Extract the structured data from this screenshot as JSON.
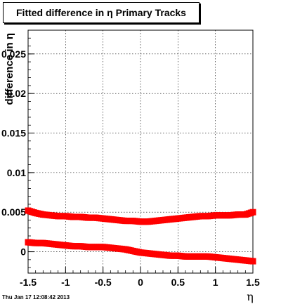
{
  "chart_data": {
    "type": "scatter",
    "title": "Fitted difference in η  Primary Tracks",
    "xlabel": "η",
    "ylabel": "difference in η",
    "xlim": [
      -1.5,
      1.5
    ],
    "ylim": [
      -0.0027,
      0.028
    ],
    "x_ticks": [
      -1.5,
      -1,
      -0.5,
      0,
      0.5,
      1,
      1.5
    ],
    "x_tick_labels": [
      "-1.5",
      "-1",
      "-0.5",
      "0",
      "0.5",
      "1",
      "1.5"
    ],
    "y_ticks": [
      0,
      0.005,
      0.01,
      0.015,
      0.02,
      0.025
    ],
    "y_tick_labels": [
      "0",
      "0.005",
      "0.01",
      "0.015",
      "0.02",
      "0.025"
    ],
    "grid": true,
    "marker_color": "#ff0000",
    "series": [
      {
        "points": [
          [
            -1.5,
            0.0052
          ],
          [
            -1.4,
            0.0049
          ],
          [
            -1.3,
            0.0047
          ],
          [
            -1.2,
            0.0046
          ],
          [
            -1.1,
            0.0045
          ],
          [
            -1.0,
            0.0045
          ],
          [
            -0.9,
            0.0044
          ],
          [
            -0.8,
            0.0044
          ],
          [
            -0.7,
            0.0043
          ],
          [
            -0.6,
            0.0043
          ],
          [
            -0.5,
            0.0042
          ],
          [
            -0.4,
            0.0041
          ],
          [
            -0.3,
            0.004
          ],
          [
            -0.2,
            0.0039
          ],
          [
            -0.1,
            0.0039
          ],
          [
            0.0,
            0.0038
          ],
          [
            0.1,
            0.0038
          ],
          [
            0.2,
            0.0039
          ],
          [
            0.3,
            0.004
          ],
          [
            0.4,
            0.0041
          ],
          [
            0.5,
            0.0042
          ],
          [
            0.6,
            0.0043
          ],
          [
            0.7,
            0.0044
          ],
          [
            0.8,
            0.0045
          ],
          [
            0.9,
            0.0045
          ],
          [
            1.0,
            0.0046
          ],
          [
            1.1,
            0.0046
          ],
          [
            1.2,
            0.0046
          ],
          [
            1.3,
            0.0047
          ],
          [
            1.4,
            0.0047
          ],
          [
            1.5,
            0.005
          ]
        ]
      },
      {
        "points": [
          [
            -1.5,
            0.0012
          ],
          [
            -1.4,
            0.0011
          ],
          [
            -1.3,
            0.0011
          ],
          [
            -1.2,
            0.001
          ],
          [
            -1.1,
            0.0009
          ],
          [
            -1.0,
            0.0008
          ],
          [
            -0.9,
            0.0007
          ],
          [
            -0.8,
            0.0007
          ],
          [
            -0.7,
            0.0006
          ],
          [
            -0.6,
            0.0006
          ],
          [
            -0.5,
            0.0006
          ],
          [
            -0.4,
            0.0005
          ],
          [
            -0.3,
            0.0004
          ],
          [
            -0.2,
            0.0003
          ],
          [
            -0.1,
            0.0001
          ],
          [
            0.0,
            -0.0001
          ],
          [
            0.1,
            -0.0002
          ],
          [
            0.2,
            -0.0003
          ],
          [
            0.3,
            -0.0004
          ],
          [
            0.4,
            -0.0005
          ],
          [
            0.5,
            -0.0005
          ],
          [
            0.6,
            -0.0006
          ],
          [
            0.7,
            -0.0006
          ],
          [
            0.8,
            -0.0006
          ],
          [
            0.9,
            -0.0006
          ],
          [
            1.0,
            -0.0007
          ],
          [
            1.1,
            -0.0008
          ],
          [
            1.2,
            -0.0009
          ],
          [
            1.3,
            -0.001
          ],
          [
            1.4,
            -0.0011
          ],
          [
            1.5,
            -0.0012
          ]
        ]
      }
    ]
  },
  "footer": {
    "timestamp": "Thu Jan 17 12:08:42 2013"
  }
}
